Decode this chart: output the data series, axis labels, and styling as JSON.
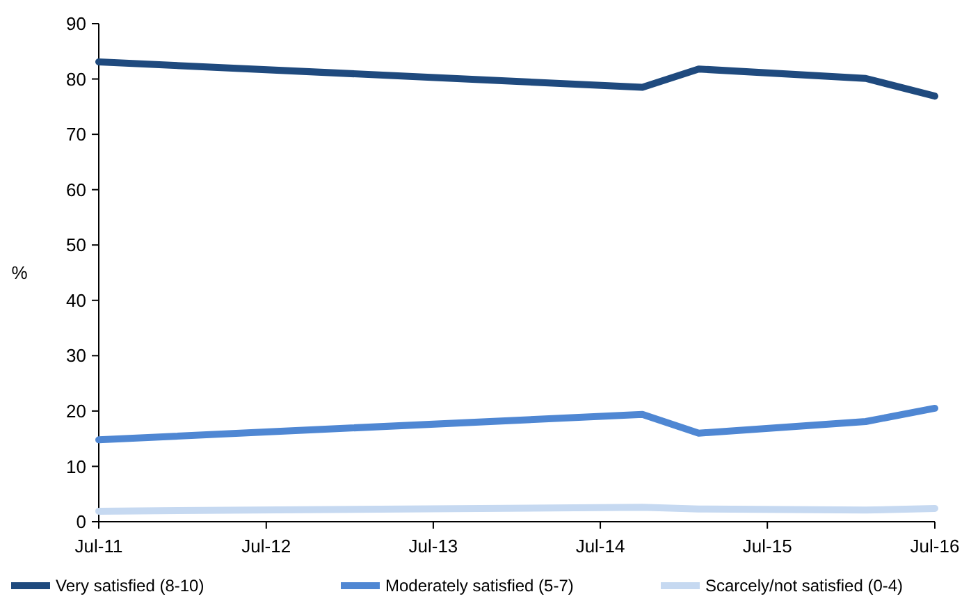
{
  "chart_data": {
    "type": "line",
    "ylabel": "%",
    "x": [
      "2011-07",
      "2014-10",
      "2015-02",
      "2016-02",
      "2016-07"
    ],
    "series": [
      {
        "name": "Very satisfied (8-10)",
        "color": "#1f4a7e",
        "values": [
          83.1,
          78.5,
          81.8,
          80.1,
          76.9
        ]
      },
      {
        "name": "Moderately satisfied (5-7)",
        "color": "#4f87d3",
        "values": [
          14.8,
          19.4,
          16.0,
          18.1,
          20.5
        ]
      },
      {
        "name": "Scarcely/not satisfied (0-4)",
        "color": "#c6d9f1",
        "values": [
          1.9,
          2.6,
          2.3,
          2.1,
          2.4
        ]
      }
    ],
    "xlim": [
      "2011-07",
      "2016-07"
    ],
    "xticks": [
      {
        "value": "2011-07",
        "label": "Jul-11"
      },
      {
        "value": "2012-07",
        "label": "Jul-12"
      },
      {
        "value": "2013-07",
        "label": "Jul-13"
      },
      {
        "value": "2014-07",
        "label": "Jul-14"
      },
      {
        "value": "2015-07",
        "label": "Jul-15"
      },
      {
        "value": "2016-07",
        "label": "Jul-16"
      }
    ],
    "ylim": [
      0,
      90
    ],
    "yticks": [
      0,
      10,
      20,
      30,
      40,
      50,
      60,
      70,
      80,
      90
    ],
    "grid": false,
    "legend": "bottom",
    "marker": "none",
    "line_style": "solid"
  }
}
